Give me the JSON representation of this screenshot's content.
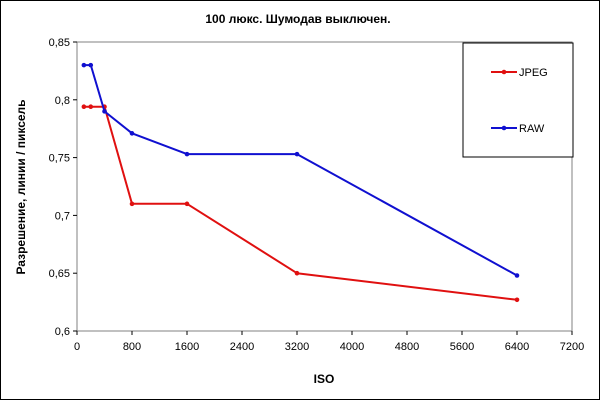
{
  "chart_data": {
    "type": "line",
    "title": "100 люкс. Шумодав выключен.",
    "xlabel": "ISO",
    "ylabel": "Разрешение, линии / пиксель",
    "xlim": [
      0,
      7200
    ],
    "ylim": [
      0.6,
      0.85
    ],
    "xticks": [
      0,
      800,
      1600,
      2400,
      3200,
      4000,
      4800,
      5600,
      6400,
      7200
    ],
    "xtick_labels": [
      "0",
      "800",
      "1600",
      "2400",
      "3200",
      "4000",
      "4800",
      "5600",
      "6400",
      "7200"
    ],
    "yticks": [
      0.6,
      0.65,
      0.7,
      0.75,
      0.8,
      0.85
    ],
    "ytick_labels": [
      "0,6",
      "0,65",
      "0,7",
      "0,75",
      "0,8",
      "0,85"
    ],
    "grid": false,
    "legend_position": "top-right",
    "series": [
      {
        "name": "JPEG",
        "color": "#e01010",
        "x": [
          100,
          200,
          400,
          800,
          1600,
          3200,
          6400
        ],
        "values": [
          0.794,
          0.794,
          0.794,
          0.71,
          0.71,
          0.65,
          0.627
        ]
      },
      {
        "name": "RAW",
        "color": "#1010d0",
        "x": [
          100,
          200,
          400,
          800,
          1600,
          3200,
          6400
        ],
        "values": [
          0.83,
          0.83,
          0.79,
          0.771,
          0.753,
          0.753,
          0.648
        ]
      }
    ]
  }
}
